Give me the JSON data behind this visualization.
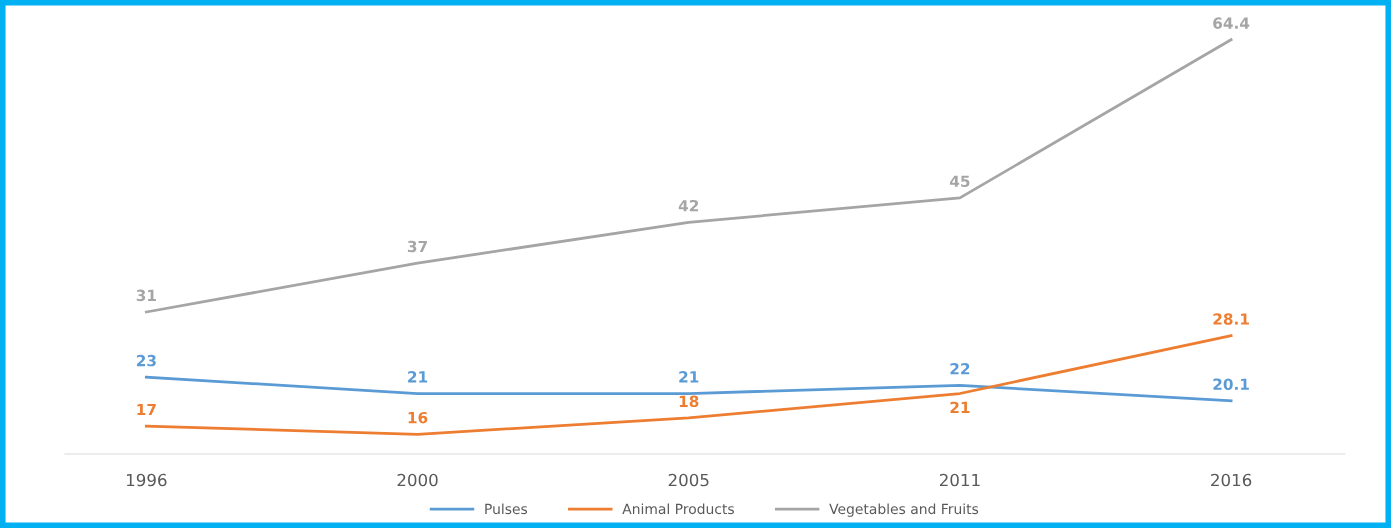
{
  "chart_data": {
    "type": "line",
    "categories": [
      "1996",
      "2000",
      "2005",
      "2011",
      "2016"
    ],
    "series": [
      {
        "name": "Pulses",
        "color": "#5b9bd5",
        "values": [
          23,
          21,
          21,
          22,
          20.1
        ]
      },
      {
        "name": "Animal Products",
        "color": "#ed7d31",
        "values": [
          17,
          16,
          18,
          21,
          28.1
        ]
      },
      {
        "name": "Vegetables and Fruits",
        "color": "#a5a5a5",
        "values": [
          31,
          37,
          42,
          45,
          64.4
        ]
      }
    ],
    "tick_labels": "x",
    "data_labels": true,
    "legend": "bottom",
    "grid": false,
    "line_style": "solid"
  }
}
